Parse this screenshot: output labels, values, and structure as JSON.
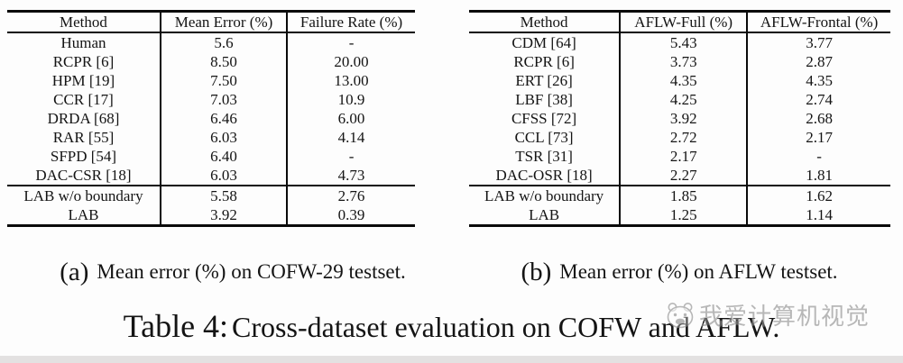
{
  "page": {
    "background": "#fdfdfd",
    "bottom_band_color": "#e3e1e1",
    "rule_color": "#0a0a0a"
  },
  "tables": [
    {
      "id": "a",
      "columns": [
        "Method",
        "Mean Error (%)",
        "Failure Rate (%)"
      ],
      "col_widths": [
        "37.6%",
        "31.0%",
        "31.4%"
      ],
      "rows": [
        {
          "method": "Human",
          "values": [
            "5.6",
            "-"
          ],
          "bold_method": false,
          "bold_values": false,
          "rule_above": false
        },
        {
          "method": "RCPR [6]",
          "values": [
            "8.50",
            "20.00"
          ],
          "bold_method": false,
          "bold_values": false,
          "rule_above": false
        },
        {
          "method": "HPM [19]",
          "values": [
            "7.50",
            "13.00"
          ],
          "bold_method": false,
          "bold_values": false,
          "rule_above": false
        },
        {
          "method": "CCR [17]",
          "values": [
            "7.03",
            "10.9"
          ],
          "bold_method": false,
          "bold_values": false,
          "rule_above": false
        },
        {
          "method": "DRDA [68]",
          "values": [
            "6.46",
            "6.00"
          ],
          "bold_method": false,
          "bold_values": false,
          "rule_above": false
        },
        {
          "method": "RAR [55]",
          "values": [
            "6.03",
            "4.14"
          ],
          "bold_method": false,
          "bold_values": false,
          "rule_above": false
        },
        {
          "method": "SFPD [54]",
          "values": [
            "6.40",
            "-"
          ],
          "bold_method": false,
          "bold_values": false,
          "rule_above": false
        },
        {
          "method": "DAC-CSR [18]",
          "values": [
            "6.03",
            "4.73"
          ],
          "bold_method": false,
          "bold_values": false,
          "rule_above": false
        },
        {
          "method": "LAB w/o boundary",
          "values": [
            "5.58",
            "2.76"
          ],
          "bold_method": true,
          "bold_values": false,
          "rule_above": true
        },
        {
          "method": "LAB",
          "values": [
            "3.92",
            "0.39"
          ],
          "bold_method": true,
          "bold_values": true,
          "rule_above": false
        }
      ],
      "caption_label": "(a)",
      "caption_text": "Mean error (%) on COFW-29 testset."
    },
    {
      "id": "b",
      "columns": [
        "Method",
        "AFLW-Full (%)",
        "AFLW-Frontal (%)"
      ],
      "col_widths": [
        "35.8%",
        "30.2%",
        "34.0%"
      ],
      "rows": [
        {
          "method": "CDM [64]",
          "values": [
            "5.43",
            "3.77"
          ],
          "bold_method": false,
          "bold_values": false,
          "rule_above": false
        },
        {
          "method": "RCPR [6]",
          "values": [
            "3.73",
            "2.87"
          ],
          "bold_method": false,
          "bold_values": false,
          "rule_above": false
        },
        {
          "method": "ERT [26]",
          "values": [
            "4.35",
            "4.35"
          ],
          "bold_method": false,
          "bold_values": false,
          "rule_above": false
        },
        {
          "method": "LBF [38]",
          "values": [
            "4.25",
            "2.74"
          ],
          "bold_method": false,
          "bold_values": false,
          "rule_above": false
        },
        {
          "method": "CFSS [72]",
          "values": [
            "3.92",
            "2.68"
          ],
          "bold_method": false,
          "bold_values": false,
          "rule_above": false
        },
        {
          "method": "CCL [73]",
          "values": [
            "2.72",
            "2.17"
          ],
          "bold_method": false,
          "bold_values": false,
          "rule_above": false
        },
        {
          "method": "TSR [31]",
          "values": [
            "2.17",
            "-"
          ],
          "bold_method": false,
          "bold_values": false,
          "rule_above": false
        },
        {
          "method": "DAC-OSR [18]",
          "values": [
            "2.27",
            "1.81"
          ],
          "bold_method": false,
          "bold_values": false,
          "rule_above": false
        },
        {
          "method": "LAB w/o boundary",
          "values": [
            "1.85",
            "1.62"
          ],
          "bold_method": true,
          "bold_values": false,
          "rule_above": true
        },
        {
          "method": "LAB",
          "values": [
            "1.25",
            "1.14"
          ],
          "bold_method": true,
          "bold_values": true,
          "rule_above": false
        }
      ],
      "caption_label": "(b)",
      "caption_text": "Mean error (%) on AFLW testset."
    }
  ],
  "main_caption": {
    "label": "Table 4:",
    "text": "Cross-dataset evaluation on COFW and AFLW."
  },
  "watermark": {
    "text": "我爱计算机视觉",
    "icon": "cartoon-animal-face-logo",
    "color": "#8d8d8d"
  }
}
